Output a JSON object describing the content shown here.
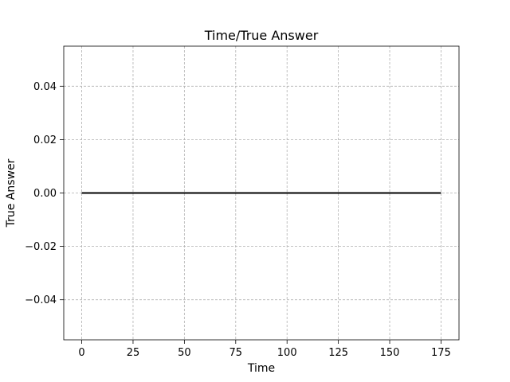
{
  "chart_data": {
    "type": "line",
    "title": "Time/True Answer",
    "xlabel": "Time",
    "ylabel": "True Answer",
    "x_range": [
      0,
      175
    ],
    "xlim": [
      -8.75,
      183.75
    ],
    "ylim": [
      -0.055,
      0.055
    ],
    "x_ticks": [
      0,
      25,
      50,
      75,
      100,
      125,
      150,
      175
    ],
    "y_ticks": [
      -0.04,
      -0.02,
      0.0,
      0.02,
      0.04
    ],
    "y_tick_labels": [
      "−0.04",
      "−0.02",
      "0.00",
      "0.02",
      "0.04"
    ],
    "grid": true,
    "series": [
      {
        "x": [
          0,
          175
        ],
        "y": [
          0,
          0
        ],
        "color": "#000000"
      }
    ]
  }
}
